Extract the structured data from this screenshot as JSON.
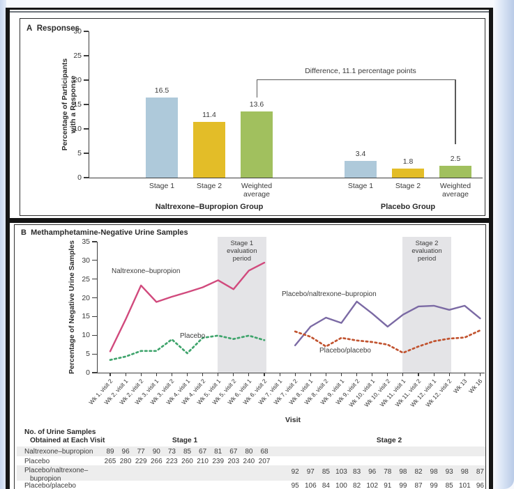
{
  "chart_data": [
    {
      "id": "panel_a",
      "type": "bar",
      "panel_label": "A",
      "title": "Responses",
      "ylabel_lines": [
        "Percentage of Participants",
        "with a Response"
      ],
      "ylim": [
        0,
        30
      ],
      "yticks": [
        0,
        5,
        10,
        15,
        20,
        25,
        30
      ],
      "categories": [
        "Stage 1",
        "Stage 2",
        "Weighted average"
      ],
      "bar_colors": [
        "#aec9da",
        "#e3bd28",
        "#a1c05e"
      ],
      "groups": [
        {
          "name": "Naltrexone–Bupropion Group",
          "values": [
            16.5,
            11.4,
            13.6
          ]
        },
        {
          "name": "Placebo Group",
          "values": [
            3.4,
            1.8,
            2.5
          ]
        }
      ],
      "annotation": {
        "text": "Difference, 11.1 percentage points"
      }
    },
    {
      "id": "panel_b",
      "type": "line",
      "panel_label": "B",
      "title": "Methamphetamine-Negative Urine Samples",
      "ylabel": "Percentage of Negative Urine Samples",
      "xlabel": "Visit",
      "ylim": [
        0,
        35
      ],
      "yticks": [
        0,
        5,
        10,
        15,
        20,
        25,
        30,
        35
      ],
      "x_categories": [
        "Wk 1, visit 2",
        "Wk 2, visit 1",
        "Wk 2, visit 2",
        "Wk 3, visit 1",
        "Wk 3, visit 2",
        "Wk 4, visit 1",
        "Wk 4, visit 2",
        "Wk 5, visit 1",
        "Wk 5, visit 2",
        "Wk 6, visit 1",
        "Wk 6, visit 2",
        "Wk 7, visit 1",
        "Wk 7, visit 2",
        "Wk 8, visit 1",
        "Wk 8, visit 2",
        "Wk 9, visit 1",
        "Wk 9, visit 2",
        "Wk 10, visit 1",
        "Wk 10, visit 2",
        "Wk 11, visit 1",
        "Wk 11, visit 2",
        "Wk 12, visit 1",
        "Wk 12, visit 2",
        "Wk 13",
        "Wk 16"
      ],
      "series": [
        {
          "name": "Naltrexone–bupropion",
          "color": "#d14a7d",
          "dashed": false,
          "start_index": 0,
          "values": [
            5.7,
            14.2,
            23.3,
            18.9,
            20.3,
            21.5,
            22.8,
            24.7,
            22.3,
            27.3,
            29.4
          ]
        },
        {
          "name": "Placebo",
          "color": "#3fa46c",
          "dashed": true,
          "start_index": 0,
          "values": [
            3.4,
            4.3,
            5.8,
            5.8,
            8.9,
            5.2,
            9.3,
            9.9,
            9.0,
            9.9,
            8.7
          ]
        },
        {
          "name": "Placebo/naltrexone–bupropion",
          "color": "#7b6aa4",
          "dashed": false,
          "start_index": 12,
          "values": [
            7.3,
            12.3,
            14.7,
            13.3,
            19.0,
            15.8,
            12.3,
            15.5,
            17.7,
            17.9,
            16.8,
            17.9,
            14.5
          ]
        },
        {
          "name": "Placebo/placebo",
          "color": "#c1532f",
          "dashed": true,
          "start_index": 12,
          "values": [
            11.0,
            9.6,
            7.0,
            9.3,
            8.6,
            8.2,
            7.5,
            5.3,
            7.0,
            8.4,
            9.1,
            9.4,
            11.3
          ]
        }
      ],
      "regions": [
        {
          "label_lines": [
            "Stage 1",
            "evaluation",
            "period"
          ],
          "from_index": 7,
          "to_index": 10
        },
        {
          "label_lines": [
            "Stage 2",
            "evaluation",
            "period"
          ],
          "from_index": 19,
          "to_index": 22
        }
      ]
    },
    {
      "id": "urine_samples_table",
      "type": "table",
      "header_lines": [
        "No. of Urine Samples",
        "Obtained at Each Visit"
      ],
      "stage_headers": [
        "Stage 1",
        "Stage 2"
      ],
      "rows": [
        {
          "label_lines": [
            "Naltrexone–bupropion"
          ],
          "stage": 1,
          "shaded": true,
          "values": [
            89,
            96,
            77,
            90,
            73,
            85,
            67,
            81,
            67,
            80,
            68
          ]
        },
        {
          "label_lines": [
            "Placebo"
          ],
          "stage": 1,
          "shaded": false,
          "values": [
            265,
            280,
            229,
            266,
            223,
            260,
            210,
            239,
            203,
            240,
            207
          ]
        },
        {
          "label_lines": [
            "Placebo/naltrexone–",
            "bupropion"
          ],
          "stage": 2,
          "shaded": true,
          "values": [
            92,
            97,
            85,
            103,
            83,
            96,
            78,
            98,
            82,
            98,
            93,
            98,
            87
          ]
        },
        {
          "label_lines": [
            "Placebo/placebo"
          ],
          "stage": 2,
          "shaded": false,
          "values": [
            95,
            106,
            84,
            100,
            82,
            102,
            91,
            99,
            87,
            99,
            85,
            101,
            96
          ]
        }
      ]
    }
  ]
}
